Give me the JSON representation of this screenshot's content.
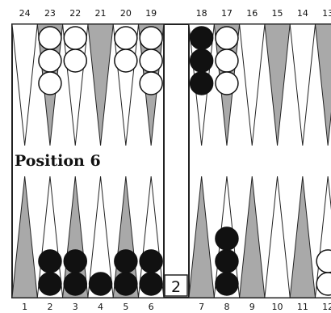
{
  "caption": "Position 6",
  "top_numbers": [
    "24",
    "23",
    "22",
    "21",
    "20",
    "19",
    "18",
    "17",
    "16",
    "15",
    "14",
    "13"
  ],
  "bottom_numbers": [
    "1",
    "2",
    "3",
    "4",
    "5",
    "6",
    "7",
    "8",
    "9",
    "10",
    "11",
    "12"
  ],
  "cube_value": "2",
  "colors": {
    "board_bg": "#ffffff",
    "dark_point": "#a9a9a9",
    "frame": "#222222",
    "black_checker": "#111111",
    "white_checker": "#ffffff"
  },
  "checkers": {
    "black": {
      "18": 3,
      "2": 2,
      "3": 2,
      "4": 1,
      "5": 2,
      "6": 2,
      "8": 3
    },
    "white": {
      "23": 3,
      "22": 2,
      "20": 2,
      "19": 3,
      "17": 3,
      "12": 2
    }
  }
}
